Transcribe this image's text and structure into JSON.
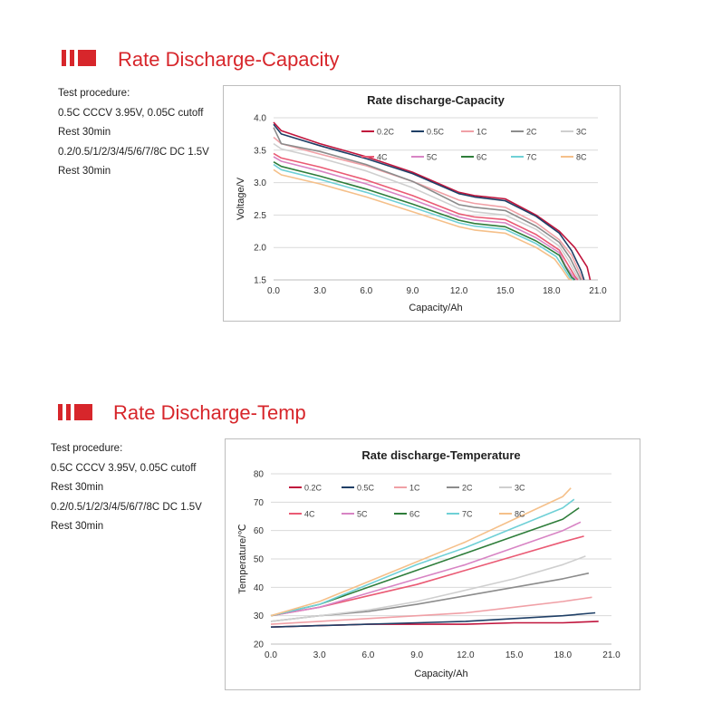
{
  "sections": [
    {
      "title": "Rate Discharge-Capacity",
      "procedure": [
        "Test procedure:",
        "0.5C CCCV 3.95V, 0.05C cutoff",
        "Rest 30min",
        "0.2/0.5/1/2/3/4/5/6/7/8C DC 1.5V",
        "Rest 30min"
      ]
    },
    {
      "title": "Rate Discharge-Temp",
      "procedure": [
        "Test procedure:",
        "0.5C CCCV 3.95V, 0.05C cutoff",
        "Rest 30min",
        "0.2/0.5/1/2/3/4/5/6/7/8C DC 1.5V",
        "Rest 30min"
      ]
    }
  ],
  "chart_data": [
    {
      "type": "line",
      "title": "Rate discharge-Capacity",
      "xlabel": "Capacity/Ah",
      "ylabel": "Voltage/V",
      "xlim": [
        0,
        21
      ],
      "ylim": [
        1.5,
        4.0
      ],
      "xticks": [
        "0.0",
        "3.0",
        "6.0",
        "9.0",
        "12.0",
        "15.0",
        "18.0",
        "21.0"
      ],
      "yticks": [
        "1.5",
        "2.0",
        "2.5",
        "3.0",
        "3.5",
        "4.0"
      ],
      "legend": "top-right",
      "series": [
        {
          "name": "0.2C",
          "color": "#c0143c",
          "x": [
            0,
            0.5,
            3,
            6,
            9,
            12,
            13,
            15,
            17,
            18.5,
            19.5,
            20.3,
            20.5
          ],
          "y": [
            3.93,
            3.8,
            3.6,
            3.4,
            3.16,
            2.85,
            2.8,
            2.75,
            2.5,
            2.25,
            2.0,
            1.7,
            1.5
          ]
        },
        {
          "name": "0.5C",
          "color": "#1f3f66",
          "x": [
            0,
            0.5,
            3,
            6,
            9,
            12,
            13,
            15,
            17,
            18.5,
            19.3,
            19.9,
            20.1
          ],
          "y": [
            3.9,
            3.75,
            3.57,
            3.37,
            3.14,
            2.83,
            2.78,
            2.72,
            2.48,
            2.22,
            1.95,
            1.65,
            1.5
          ]
        },
        {
          "name": "1C",
          "color": "#f0a0a6",
          "x": [
            0,
            0.5,
            3,
            6,
            9,
            12,
            13,
            15,
            17,
            18.5,
            19.3,
            19.8,
            20.0
          ],
          "y": [
            3.7,
            3.6,
            3.44,
            3.26,
            3.02,
            2.73,
            2.68,
            2.62,
            2.38,
            2.12,
            1.88,
            1.62,
            1.5
          ]
        },
        {
          "name": "2C",
          "color": "#8c8c8c",
          "x": [
            0,
            0.5,
            3,
            6,
            9,
            12,
            13,
            15,
            17,
            18.5,
            19.2,
            19.7,
            19.9
          ],
          "y": [
            3.85,
            3.6,
            3.48,
            3.28,
            3.02,
            2.66,
            2.62,
            2.57,
            2.33,
            2.08,
            1.84,
            1.6,
            1.5
          ]
        },
        {
          "name": "3C",
          "color": "#cfcfcf",
          "x": [
            0,
            0.5,
            3,
            6,
            9,
            12,
            13,
            15,
            17,
            18.5,
            19.1,
            19.6,
            19.8
          ],
          "y": [
            3.6,
            3.52,
            3.38,
            3.18,
            2.92,
            2.6,
            2.55,
            2.5,
            2.28,
            2.02,
            1.8,
            1.58,
            1.5
          ]
        },
        {
          "name": "4C",
          "color": "#ea5a74",
          "x": [
            0,
            0.5,
            3,
            6,
            9,
            12,
            13,
            15,
            17,
            18.5,
            19.0,
            19.5,
            19.7
          ],
          "y": [
            3.45,
            3.38,
            3.24,
            3.04,
            2.8,
            2.52,
            2.47,
            2.43,
            2.2,
            1.96,
            1.76,
            1.56,
            1.5
          ]
        },
        {
          "name": "5C",
          "color": "#d884c4",
          "x": [
            0,
            0.5,
            3,
            6,
            9,
            12,
            13,
            15,
            17,
            18.5,
            18.9,
            19.4,
            19.6
          ],
          "y": [
            3.4,
            3.33,
            3.18,
            2.98,
            2.74,
            2.47,
            2.42,
            2.38,
            2.15,
            1.92,
            1.72,
            1.55,
            1.5
          ]
        },
        {
          "name": "6C",
          "color": "#2e7d3a",
          "x": [
            0,
            0.5,
            3,
            6,
            9,
            12,
            13,
            15,
            17,
            18.5,
            18.9,
            19.3,
            19.5
          ],
          "y": [
            3.32,
            3.25,
            3.1,
            2.9,
            2.67,
            2.42,
            2.37,
            2.32,
            2.1,
            1.88,
            1.7,
            1.54,
            1.5
          ]
        },
        {
          "name": "7C",
          "color": "#6fd0d6",
          "x": [
            0,
            0.5,
            3,
            6,
            9,
            12,
            13,
            15,
            17,
            18.3,
            18.8,
            19.2,
            19.4
          ],
          "y": [
            3.28,
            3.2,
            3.05,
            2.85,
            2.62,
            2.38,
            2.33,
            2.28,
            2.06,
            1.86,
            1.68,
            1.53,
            1.5
          ]
        },
        {
          "name": "8C",
          "color": "#f5c08a",
          "x": [
            0,
            0.5,
            3,
            6,
            9,
            12,
            13,
            15,
            17,
            18.2,
            18.7,
            19.1,
            19.3
          ],
          "y": [
            3.2,
            3.12,
            2.98,
            2.78,
            2.55,
            2.32,
            2.27,
            2.22,
            2.0,
            1.82,
            1.66,
            1.52,
            1.5
          ]
        }
      ]
    },
    {
      "type": "line",
      "title": "Rate discharge-Temperature",
      "xlabel": "Capacity/Ah",
      "ylabel": "Temperature/℃",
      "xlim": [
        0,
        21
      ],
      "ylim": [
        20,
        80
      ],
      "xticks": [
        "0.0",
        "3.0",
        "6.0",
        "9.0",
        "12.0",
        "15.0",
        "18.0",
        "21.0"
      ],
      "yticks": [
        "20",
        "30",
        "40",
        "50",
        "60",
        "70",
        "80"
      ],
      "legend": "top",
      "series": [
        {
          "name": "0.2C",
          "color": "#c0143c",
          "x": [
            0,
            3,
            6,
            9,
            12,
            15,
            18,
            20.2
          ],
          "y": [
            26,
            26.5,
            27,
            27,
            27,
            27.5,
            27.5,
            28
          ]
        },
        {
          "name": "0.5C",
          "color": "#1f3f66",
          "x": [
            0,
            3,
            6,
            9,
            12,
            15,
            18,
            20
          ],
          "y": [
            26,
            26.5,
            27,
            27.5,
            28,
            29,
            30,
            31
          ]
        },
        {
          "name": "1C",
          "color": "#f0a0a6",
          "x": [
            0,
            3,
            6,
            9,
            12,
            15,
            18,
            19.8
          ],
          "y": [
            27,
            28,
            29,
            30,
            31,
            33,
            35,
            36.5
          ]
        },
        {
          "name": "2C",
          "color": "#8c8c8c",
          "x": [
            0,
            3,
            6,
            9,
            12,
            15,
            18,
            19.6
          ],
          "y": [
            28,
            30,
            31.5,
            34,
            37,
            40,
            43,
            45
          ]
        },
        {
          "name": "3C",
          "color": "#cfcfcf",
          "x": [
            0,
            3,
            6,
            9,
            12,
            15,
            18,
            19.4
          ],
          "y": [
            28,
            30,
            32,
            35,
            39,
            43,
            48,
            51
          ]
        },
        {
          "name": "4C",
          "color": "#ea5a74",
          "x": [
            0,
            3,
            6,
            9,
            12,
            15,
            18,
            19.3
          ],
          "y": [
            30,
            33,
            37,
            41,
            46,
            51,
            56,
            58
          ]
        },
        {
          "name": "5C",
          "color": "#d884c4",
          "x": [
            0,
            3,
            6,
            9,
            12,
            15,
            18,
            19.1
          ],
          "y": [
            30,
            33,
            38,
            43,
            48,
            54,
            60,
            63
          ]
        },
        {
          "name": "6C",
          "color": "#2e7d3a",
          "x": [
            0,
            3,
            6,
            9,
            12,
            15,
            18,
            19.0
          ],
          "y": [
            30,
            34,
            40,
            46,
            52,
            58,
            64,
            68
          ]
        },
        {
          "name": "7C",
          "color": "#6fd0d6",
          "x": [
            0,
            3,
            6,
            9,
            12,
            15,
            18,
            18.7
          ],
          "y": [
            30,
            34,
            41,
            48,
            54,
            61,
            68,
            71
          ]
        },
        {
          "name": "8C",
          "color": "#f5c08a",
          "x": [
            0,
            3,
            6,
            9,
            12,
            15,
            18,
            18.5
          ],
          "y": [
            30,
            35,
            42,
            49,
            56,
            64,
            72,
            75
          ]
        }
      ]
    }
  ]
}
